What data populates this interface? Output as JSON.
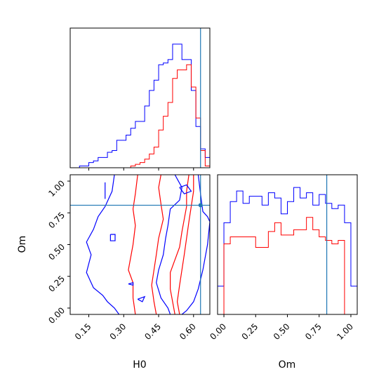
{
  "chart_data": {
    "type": "corner",
    "parameters": [
      "H0",
      "Om"
    ],
    "truths": {
      "H0": 0.63,
      "Om": 0.81
    },
    "colors": {
      "series_a": "#0000ff",
      "series_b": "#ff0000",
      "truth": "#1f77b4"
    },
    "axes": {
      "H0": {
        "label": "H0",
        "range": [
          0.07,
          0.67
        ],
        "ticks": [
          0.15,
          0.3,
          0.45,
          0.6
        ],
        "tick_labels": [
          "0.15",
          "0.30",
          "0.45",
          "0.60"
        ]
      },
      "Om": {
        "label": "Om",
        "range": [
          -0.05,
          1.05
        ],
        "ticks": [
          0.0,
          0.25,
          0.5,
          0.75,
          1.0
        ],
        "tick_labels": [
          "0.00",
          "0.25",
          "0.50",
          "0.75",
          "1.00"
        ]
      }
    },
    "hist_H0": {
      "edges": [
        0.07,
        0.09,
        0.11,
        0.13,
        0.15,
        0.17,
        0.19,
        0.21,
        0.23,
        0.25,
        0.27,
        0.29,
        0.31,
        0.33,
        0.35,
        0.37,
        0.39,
        0.41,
        0.43,
        0.45,
        0.47,
        0.49,
        0.51,
        0.53,
        0.55,
        0.57,
        0.59,
        0.61,
        0.63,
        0.65,
        0.67
      ],
      "series": [
        {
          "key": "a",
          "counts": [
            0.0,
            0.0,
            0.01,
            0.01,
            0.03,
            0.04,
            0.06,
            0.06,
            0.09,
            0.1,
            0.16,
            0.16,
            0.19,
            0.23,
            0.27,
            0.27,
            0.36,
            0.45,
            0.51,
            0.6,
            0.61,
            0.63,
            0.72,
            0.72,
            0.63,
            0.63,
            0.45,
            0.24,
            0.11,
            0.06
          ]
        },
        {
          "key": "b",
          "counts": [
            0.0,
            0.0,
            0.0,
            0.0,
            0.0,
            0.0,
            0.0,
            0.0,
            0.0,
            0.0,
            0.0,
            0.0,
            0.0,
            0.01,
            0.02,
            0.03,
            0.05,
            0.08,
            0.12,
            0.22,
            0.3,
            0.38,
            0.52,
            0.57,
            0.57,
            0.6,
            0.47,
            0.29,
            0.1,
            0.01
          ]
        }
      ]
    },
    "hist_Om": {
      "edges": [
        -0.05,
        0.0,
        0.05,
        0.1,
        0.15,
        0.2,
        0.25,
        0.3,
        0.35,
        0.4,
        0.45,
        0.5,
        0.55,
        0.6,
        0.65,
        0.7,
        0.75,
        0.8,
        0.85,
        0.9,
        0.95,
        1.0,
        1.05
      ],
      "series": [
        {
          "key": "a",
          "counts": [
            0.16,
            0.52,
            0.64,
            0.7,
            0.63,
            0.67,
            0.67,
            0.62,
            0.69,
            0.66,
            0.57,
            0.64,
            0.72,
            0.66,
            0.69,
            0.62,
            0.68,
            0.63,
            0.6,
            0.62,
            0.52,
            0.16
          ]
        },
        {
          "key": "b",
          "counts": [
            0.0,
            0.4,
            0.44,
            0.44,
            0.44,
            0.44,
            0.38,
            0.38,
            0.47,
            0.52,
            0.45,
            0.45,
            0.48,
            0.48,
            0.55,
            0.48,
            0.44,
            0.42,
            0.4,
            0.42,
            0.0,
            0.0
          ]
        }
      ]
    },
    "contours_2d": [
      {
        "key": "a",
        "points": [
          [
            0.26,
            1.05
          ],
          [
            0.25,
            0.92
          ],
          [
            0.22,
            0.8
          ],
          [
            0.19,
            0.72
          ],
          [
            0.17,
            0.62
          ],
          [
            0.14,
            0.52
          ],
          [
            0.16,
            0.42
          ],
          [
            0.14,
            0.28
          ],
          [
            0.17,
            0.16
          ],
          [
            0.21,
            0.1
          ],
          [
            0.23,
            0.05
          ],
          [
            0.26,
            0.0
          ],
          [
            0.28,
            -0.05
          ]
        ]
      },
      {
        "key": "a",
        "points": [
          [
            0.52,
            1.05
          ],
          [
            0.55,
            0.95
          ],
          [
            0.54,
            0.85
          ],
          [
            0.5,
            0.78
          ],
          [
            0.49,
            0.65
          ],
          [
            0.48,
            0.55
          ],
          [
            0.47,
            0.42
          ],
          [
            0.45,
            0.3
          ],
          [
            0.44,
            0.2
          ],
          [
            0.46,
            0.08
          ],
          [
            0.49,
            0.0
          ],
          [
            0.5,
            -0.05
          ]
        ]
      },
      {
        "key": "a",
        "points": [
          [
            0.62,
            1.05
          ],
          [
            0.63,
            0.9
          ],
          [
            0.64,
            0.76
          ],
          [
            0.66,
            0.72
          ],
          [
            0.67,
            0.68
          ],
          [
            0.66,
            0.5
          ],
          [
            0.64,
            0.3
          ],
          [
            0.62,
            0.15
          ],
          [
            0.6,
            0.05
          ],
          [
            0.57,
            -0.02
          ],
          [
            0.55,
            -0.05
          ]
        ]
      },
      {
        "key": "b",
        "points": [
          [
            0.36,
            1.05
          ],
          [
            0.35,
            0.9
          ],
          [
            0.34,
            0.78
          ],
          [
            0.35,
            0.65
          ],
          [
            0.34,
            0.5
          ],
          [
            0.33,
            0.4
          ],
          [
            0.32,
            0.3
          ],
          [
            0.34,
            0.2
          ],
          [
            0.34,
            0.08
          ],
          [
            0.35,
            -0.05
          ]
        ]
      },
      {
        "key": "b",
        "points": [
          [
            0.46,
            1.05
          ],
          [
            0.45,
            0.95
          ],
          [
            0.46,
            0.82
          ],
          [
            0.47,
            0.7
          ],
          [
            0.45,
            0.55
          ],
          [
            0.44,
            0.42
          ],
          [
            0.43,
            0.3
          ],
          [
            0.42,
            0.18
          ],
          [
            0.43,
            0.05
          ],
          [
            0.44,
            -0.05
          ]
        ]
      },
      {
        "key": "b",
        "points": [
          [
            0.58,
            1.05
          ],
          [
            0.57,
            0.92
          ],
          [
            0.57,
            0.8
          ],
          [
            0.56,
            0.7
          ],
          [
            0.55,
            0.6
          ],
          [
            0.54,
            0.48
          ],
          [
            0.52,
            0.38
          ],
          [
            0.5,
            0.28
          ],
          [
            0.5,
            0.15
          ],
          [
            0.51,
            0.05
          ],
          [
            0.52,
            -0.05
          ]
        ]
      },
      {
        "key": "b",
        "points": [
          [
            0.6,
            1.05
          ],
          [
            0.6,
            0.92
          ],
          [
            0.59,
            0.8
          ],
          [
            0.58,
            0.68
          ],
          [
            0.57,
            0.55
          ],
          [
            0.56,
            0.42
          ],
          [
            0.55,
            0.3
          ],
          [
            0.54,
            0.18
          ],
          [
            0.53,
            0.05
          ],
          [
            0.54,
            -0.05
          ]
        ]
      }
    ],
    "contour_islands": [
      {
        "key": "a",
        "points": [
          [
            0.243,
            0.58
          ],
          [
            0.263,
            0.58
          ],
          [
            0.263,
            0.53
          ],
          [
            0.243,
            0.53
          ],
          [
            0.243,
            0.58
          ]
        ]
      },
      {
        "key": "a",
        "points": [
          [
            0.22,
            0.99
          ],
          [
            0.22,
            0.86
          ]
        ]
      },
      {
        "key": "a",
        "points": [
          [
            0.32,
            0.19
          ],
          [
            0.34,
            0.2
          ],
          [
            0.34,
            0.18
          ],
          [
            0.32,
            0.19
          ]
        ]
      },
      {
        "key": "a",
        "points": [
          [
            0.36,
            0.07
          ],
          [
            0.39,
            0.09
          ],
          [
            0.38,
            0.05
          ],
          [
            0.36,
            0.07
          ]
        ]
      },
      {
        "key": "a",
        "points": [
          [
            0.54,
            0.95
          ],
          [
            0.57,
            0.97
          ],
          [
            0.59,
            0.92
          ],
          [
            0.56,
            0.9
          ],
          [
            0.54,
            0.95
          ]
        ]
      }
    ]
  }
}
